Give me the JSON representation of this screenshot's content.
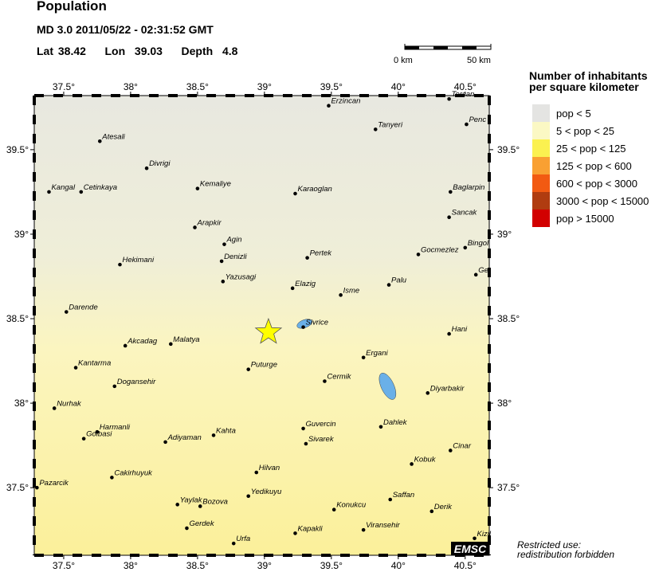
{
  "header": {
    "title": "Population",
    "event_line": "MD 3.0  2011/05/22 - 02:31:52 GMT",
    "location_line": "Lat 38.42    Lon  39.03    Depth  4.8"
  },
  "event": {
    "lat": 38.42,
    "lon": 39.03,
    "depth": 4.8,
    "magnitude_type": "MD",
    "magnitude": 3.0,
    "marker": "star-icon",
    "marker_color": "#ffff00"
  },
  "scale_bar": {
    "start_label": "0 km",
    "end_label": "50 km"
  },
  "map": {
    "lon_range": [
      37.28,
      40.68
    ],
    "lat_range": [
      37.1,
      39.82
    ],
    "lon_ticks": [
      "37.5°",
      "38°",
      "38.5°",
      "39°",
      "39.5°",
      "40°",
      "40.5°"
    ],
    "lon_tick_values": [
      37.5,
      38,
      38.5,
      39,
      39.5,
      40,
      40.5
    ],
    "lat_ticks": [
      "39.5°",
      "39°",
      "38.5°",
      "38°",
      "37.5°"
    ],
    "lat_tick_values": [
      39.5,
      39,
      38.5,
      38,
      37.5
    ],
    "logo": "EMSC",
    "cities": [
      {
        "name": "Erzincan",
        "lon": 39.48,
        "lat": 39.76
      },
      {
        "name": "Tanyeri",
        "lon": 39.83,
        "lat": 39.62
      },
      {
        "name": "Tercan",
        "lon": 40.38,
        "lat": 39.8
      },
      {
        "name": "Penc",
        "lon": 40.51,
        "lat": 39.65
      },
      {
        "name": "Atesali",
        "lon": 37.77,
        "lat": 39.55
      },
      {
        "name": "Divrigi",
        "lon": 38.12,
        "lat": 39.39
      },
      {
        "name": "Kangal",
        "lon": 37.39,
        "lat": 39.25
      },
      {
        "name": "Cetinkaya",
        "lon": 37.63,
        "lat": 39.25
      },
      {
        "name": "Kemaliye",
        "lon": 38.5,
        "lat": 39.27
      },
      {
        "name": "Karaoglan",
        "lon": 39.23,
        "lat": 39.24
      },
      {
        "name": "Baglarpin",
        "lon": 40.39,
        "lat": 39.25
      },
      {
        "name": "Sancak",
        "lon": 40.38,
        "lat": 39.1
      },
      {
        "name": "Arapkir",
        "lon": 38.48,
        "lat": 39.04
      },
      {
        "name": "Agin",
        "lon": 38.7,
        "lat": 38.94
      },
      {
        "name": "Denizli",
        "lon": 38.68,
        "lat": 38.84
      },
      {
        "name": "Pertek",
        "lon": 39.32,
        "lat": 38.86
      },
      {
        "name": "Gocmezlez",
        "lon": 40.15,
        "lat": 38.88
      },
      {
        "name": "Bingol",
        "lon": 40.5,
        "lat": 38.92
      },
      {
        "name": "Ge",
        "lon": 40.58,
        "lat": 38.76
      },
      {
        "name": "Hekimani",
        "lon": 37.92,
        "lat": 38.82
      },
      {
        "name": "Yazusagi",
        "lon": 38.69,
        "lat": 38.72
      },
      {
        "name": "Elazig",
        "lon": 39.21,
        "lat": 38.68
      },
      {
        "name": "Isme",
        "lon": 39.57,
        "lat": 38.64
      },
      {
        "name": "Palu",
        "lon": 39.93,
        "lat": 38.7
      },
      {
        "name": "Darende",
        "lon": 37.52,
        "lat": 38.54
      },
      {
        "name": "Sivrice",
        "lon": 39.29,
        "lat": 38.45
      },
      {
        "name": "Hani",
        "lon": 40.38,
        "lat": 38.41
      },
      {
        "name": "Akcadag",
        "lon": 37.96,
        "lat": 38.34
      },
      {
        "name": "Malatya",
        "lon": 38.3,
        "lat": 38.35
      },
      {
        "name": "Kantarma",
        "lon": 37.59,
        "lat": 38.21
      },
      {
        "name": "Puturge",
        "lon": 38.88,
        "lat": 38.2
      },
      {
        "name": "Ergani",
        "lon": 39.74,
        "lat": 38.27
      },
      {
        "name": "Cermik",
        "lon": 39.45,
        "lat": 38.13
      },
      {
        "name": "Dogansehir",
        "lon": 37.88,
        "lat": 38.1
      },
      {
        "name": "Nurhak",
        "lon": 37.43,
        "lat": 37.97
      },
      {
        "name": "Diyarbakir",
        "lon": 40.22,
        "lat": 38.06
      },
      {
        "name": "Harmanli",
        "lon": 37.75,
        "lat": 37.83
      },
      {
        "name": "Golbasi",
        "lon": 37.65,
        "lat": 37.79
      },
      {
        "name": "Guvercin",
        "lon": 39.29,
        "lat": 37.85
      },
      {
        "name": "Dahlek",
        "lon": 39.87,
        "lat": 37.86
      },
      {
        "name": "Adiyaman",
        "lon": 38.26,
        "lat": 37.77
      },
      {
        "name": "Kahta",
        "lon": 38.62,
        "lat": 37.81
      },
      {
        "name": "Sivarek",
        "lon": 39.31,
        "lat": 37.76
      },
      {
        "name": "Cinar",
        "lon": 40.39,
        "lat": 37.72
      },
      {
        "name": "Kobuk",
        "lon": 40.1,
        "lat": 37.64
      },
      {
        "name": "Hilvan",
        "lon": 38.94,
        "lat": 37.59
      },
      {
        "name": "Cakirhuyuk",
        "lon": 37.86,
        "lat": 37.56
      },
      {
        "name": "Pazarcik",
        "lon": 37.3,
        "lat": 37.5
      },
      {
        "name": "Yedikuyu",
        "lon": 38.88,
        "lat": 37.45
      },
      {
        "name": "Saffan",
        "lon": 39.94,
        "lat": 37.43
      },
      {
        "name": "Konukcu",
        "lon": 39.52,
        "lat": 37.37
      },
      {
        "name": "Derik",
        "lon": 40.25,
        "lat": 37.36
      },
      {
        "name": "Yaylak",
        "lon": 38.35,
        "lat": 37.4
      },
      {
        "name": "Bozova",
        "lon": 38.52,
        "lat": 37.39
      },
      {
        "name": "Gerdek",
        "lon": 38.42,
        "lat": 37.26
      },
      {
        "name": "Kapakli",
        "lon": 39.23,
        "lat": 37.23
      },
      {
        "name": "Viransehir",
        "lon": 39.74,
        "lat": 37.25
      },
      {
        "name": "Kizil",
        "lon": 40.57,
        "lat": 37.2
      },
      {
        "name": "Urfa",
        "lon": 38.77,
        "lat": 37.17
      }
    ],
    "lakes": [
      {
        "name": "",
        "lon": 39.3,
        "lat": 38.47,
        "color": "#6ab0e8"
      },
      {
        "name": "",
        "lon": 39.92,
        "lat": 38.1,
        "color": "#6ab0e8"
      }
    ]
  },
  "legend": {
    "title_line1": "Number of inhabitants",
    "title_line2": "per square kilometer",
    "items": [
      {
        "label": "pop < 5",
        "color": "#e4e4e2"
      },
      {
        "label": "5 < pop < 25",
        "color": "#fbf8c4"
      },
      {
        "label": "25 < pop < 125",
        "color": "#fbf150"
      },
      {
        "label": "125 < pop < 600",
        "color": "#f9a032"
      },
      {
        "label": "600 < pop < 3000",
        "color": "#f25a12"
      },
      {
        "label": "3000 < pop < 15000",
        "color": "#b03c10"
      },
      {
        "label": "pop > 15000",
        "color": "#d20000"
      }
    ]
  },
  "footer": {
    "restricted_line1": "Restricted use:",
    "restricted_line2": "redistribution forbidden"
  }
}
